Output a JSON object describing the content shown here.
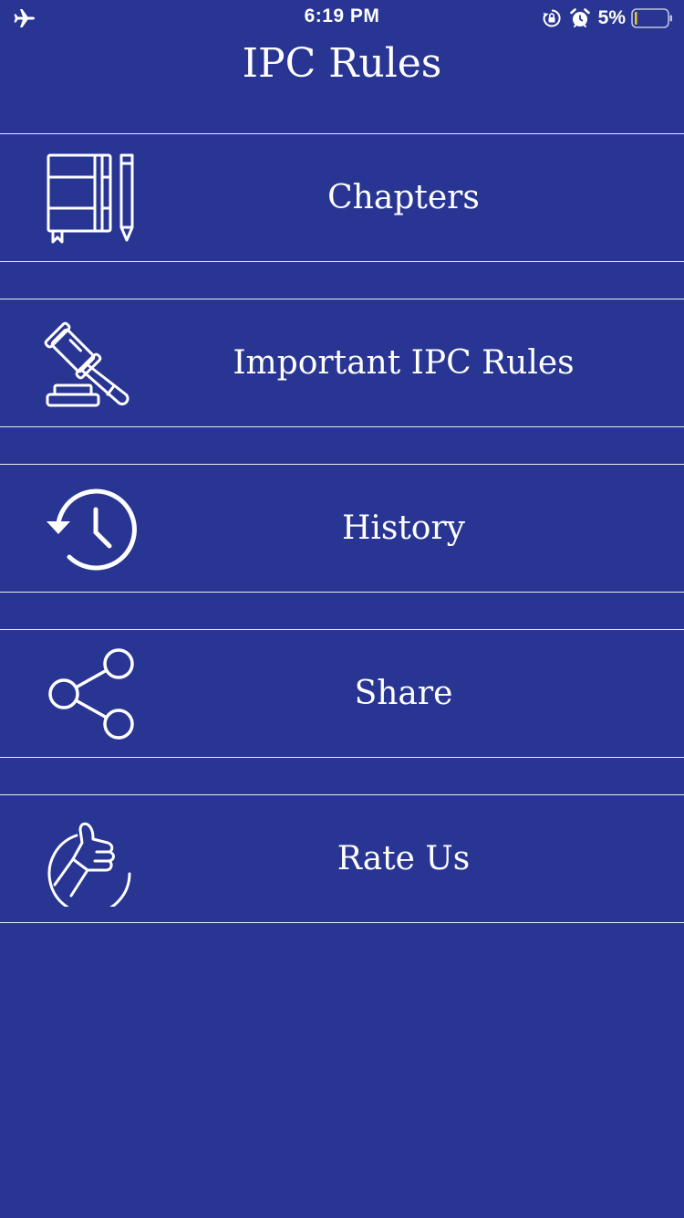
{
  "status_bar": {
    "time": "6:19 PM",
    "battery_percent": "5%",
    "icons": [
      "airplane-icon",
      "rotation-lock-icon",
      "alarm-icon",
      "battery-icon"
    ]
  },
  "header": {
    "title": "IPC Rules"
  },
  "menu": {
    "items": [
      {
        "label": "Chapters",
        "icon": "notebook-pencil-icon"
      },
      {
        "label": "Important IPC Rules",
        "icon": "gavel-icon"
      },
      {
        "label": "History",
        "icon": "history-icon"
      },
      {
        "label": "Share",
        "icon": "share-icon"
      },
      {
        "label": "Rate Us",
        "icon": "thumbs-up-icon"
      }
    ]
  },
  "colors": {
    "background": "#293593",
    "foreground": "#ffffff",
    "battery_level": "#f5c518"
  }
}
